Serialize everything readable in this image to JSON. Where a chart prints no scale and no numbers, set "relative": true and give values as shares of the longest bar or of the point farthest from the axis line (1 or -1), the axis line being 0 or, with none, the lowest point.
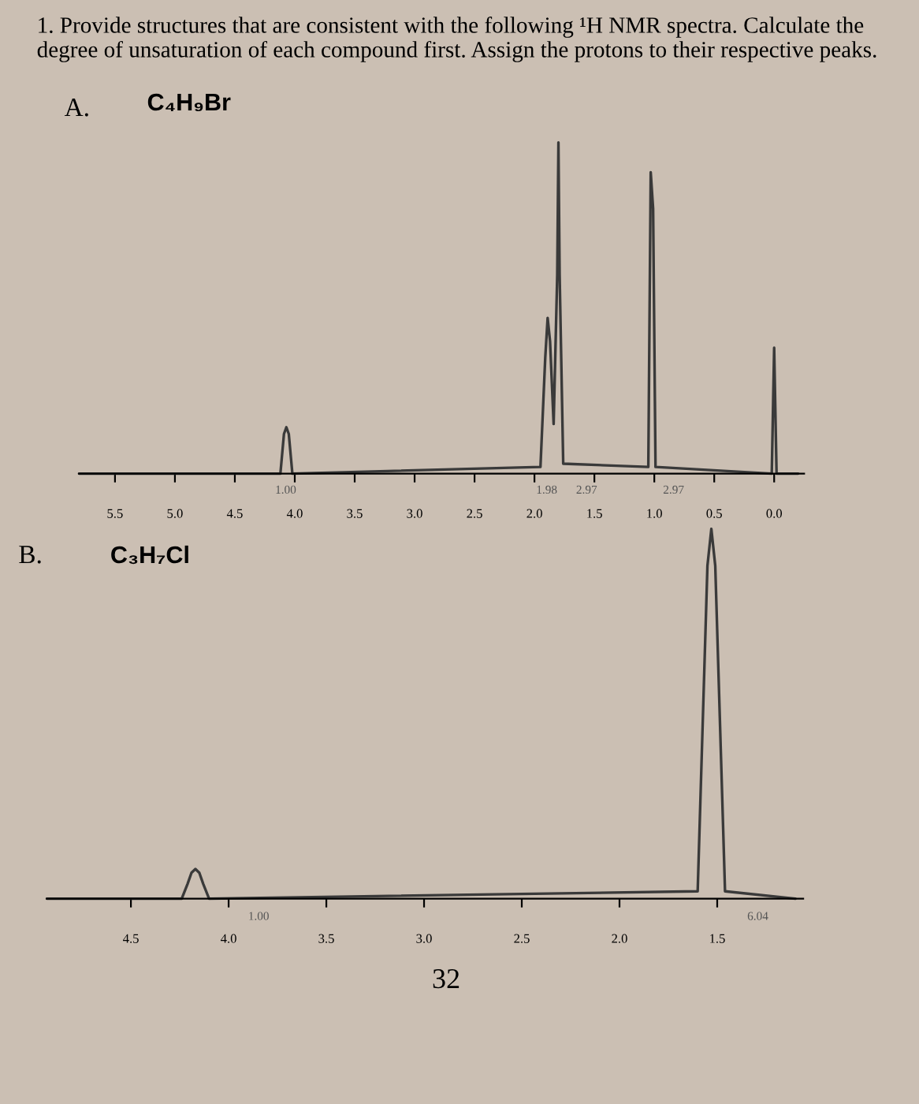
{
  "chart_data": [
    {
      "type": "line",
      "title": "1. Provide structures that are consistent with the following ¹H NMR spectra. Calculate the degree of unsaturation of each compound first. Assign the protons to their respective peaks.",
      "relative": true,
      "annotations": [
        "A.",
        "C₄H₉Br",
        "1.00",
        "1.98",
        "2.97",
        "2.97"
      ],
      "xlim": [
        5.8,
        -0.25
      ],
      "xticks": [
        5.5,
        {
          "value": 5,
          "label": "5.0"
        },
        4.5,
        {
          "value": 4,
          "label": "4.0"
        },
        3.5,
        {
          "value": 3,
          "label": "3.0"
        },
        2.5,
        {
          "value": 2,
          "label": "2.0"
        },
        1.5,
        {
          "value": 1,
          "label": "1.0"
        },
        0.5,
        {
          "value": 0,
          "label": "0.0"
        }
      ],
      "series": [
        {
          "color": "#3a3a3a",
          "x": [
            5.8,
            4.12,
            4.09,
            4.07,
            4.05,
            4.02,
            1.95,
            1.91,
            1.89,
            1.87,
            1.84,
            1.81,
            1.8,
            1.79,
            1.76,
            1.05,
            1.03,
            1.01,
            0.99,
            0.02,
            0.0,
            -0.02,
            -0.2
          ],
          "values": [
            0,
            0,
            0.12,
            0.14,
            0.12,
            0,
            0.02,
            0.35,
            0.47,
            0.4,
            0.15,
            0.6,
            1.0,
            0.6,
            0.03,
            0.02,
            0.91,
            0.8,
            0.02,
            0,
            0.38,
            0,
            0
          ]
        }
      ]
    },
    {
      "type": "line",
      "relative": true,
      "annotations": [
        "B.",
        "C₃H₇Cl",
        "32",
        "1.00",
        "6.04"
      ],
      "xlim": [
        4.93,
        1.06
      ],
      "xticks": [
        4.5,
        {
          "value": 4,
          "label": "4.0"
        },
        3.5,
        {
          "value": 3,
          "label": "3.0"
        },
        2.5,
        {
          "value": 2,
          "label": "2.0"
        },
        1.5
      ],
      "series": [
        {
          "color": "#3a3a3a",
          "x": [
            4.93,
            4.24,
            4.21,
            4.19,
            4.17,
            4.15,
            4.13,
            4.1,
            1.6,
            1.55,
            1.53,
            1.51,
            1.46,
            1.1
          ],
          "values": [
            0,
            0,
            0.04,
            0.07,
            0.08,
            0.07,
            0.04,
            0,
            0.02,
            0.9,
            1.0,
            0.9,
            0.02,
            0
          ]
        }
      ]
    }
  ]
}
